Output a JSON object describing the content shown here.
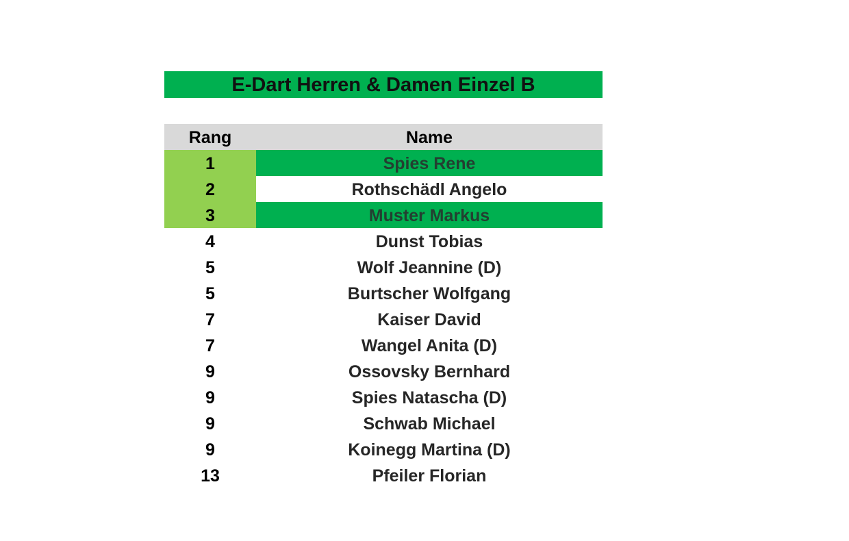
{
  "title": "E-Dart Herren & Damen Einzel B",
  "colors": {
    "title_bg": "#00b050",
    "header_bg": "#d9d9d9",
    "podium_rank_bg": "#92d050",
    "highlight_name_bg": "#00b050"
  },
  "table": {
    "headers": {
      "rang": "Rang",
      "name": "Name"
    },
    "rows": [
      {
        "rang": "1",
        "name": "Spies Rene"
      },
      {
        "rang": "2",
        "name": "Rothschädl Angelo"
      },
      {
        "rang": "3",
        "name": "Muster Markus"
      },
      {
        "rang": "4",
        "name": "Dunst Tobias"
      },
      {
        "rang": "5",
        "name": "Wolf Jeannine (D)"
      },
      {
        "rang": "5",
        "name": "Burtscher Wolfgang"
      },
      {
        "rang": "7",
        "name": "Kaiser David"
      },
      {
        "rang": "7",
        "name": "Wangel Anita (D)"
      },
      {
        "rang": "9",
        "name": "Ossovsky Bernhard"
      },
      {
        "rang": "9",
        "name": "Spies Natascha (D)"
      },
      {
        "rang": "9",
        "name": "Schwab Michael"
      },
      {
        "rang": "9",
        "name": "Koinegg Martina (D)"
      },
      {
        "rang": "13",
        "name": "Pfeiler Florian"
      }
    ]
  }
}
